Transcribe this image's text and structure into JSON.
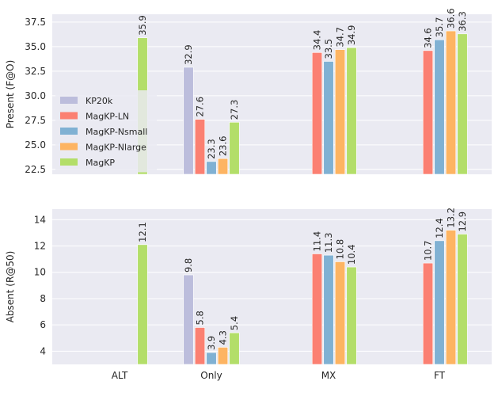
{
  "chart_data": [
    {
      "type": "bar",
      "categories": [
        "ALT",
        "Only",
        "MX",
        "FT"
      ],
      "ylabel": "Present (F@O)",
      "ylim": [
        22.0,
        38.3
      ],
      "yticks": [
        22.5,
        25.0,
        27.5,
        30.0,
        32.5,
        35.0,
        37.5
      ],
      "ytick_labels": [
        "22.5",
        "25.0",
        "27.5",
        "30.0",
        "32.5",
        "35.0",
        "37.5"
      ],
      "grid": true,
      "legend": "middle-left",
      "series": [
        {
          "name": "KP20k",
          "color": "#bcbddc",
          "values": [
            null,
            32.9,
            null,
            null
          ],
          "labels": [
            "",
            "32.9",
            "",
            ""
          ]
        },
        {
          "name": "MagKP-LN",
          "color": "#fb8072",
          "values": [
            null,
            27.6,
            34.4,
            34.6
          ],
          "labels": [
            "",
            "27.6",
            "34.4",
            "34.6"
          ]
        },
        {
          "name": "MagKP-Nsmall",
          "color": "#80b1d3",
          "values": [
            null,
            23.3,
            33.5,
            35.7
          ],
          "labels": [
            "",
            "23.3",
            "33.5",
            "35.7"
          ]
        },
        {
          "name": "MagKP-Nlarge",
          "color": "#fdb462",
          "values": [
            null,
            23.6,
            34.7,
            36.6
          ],
          "labels": [
            "",
            "23.6",
            "34.7",
            "36.6"
          ]
        },
        {
          "name": "MagKP",
          "color": "#b3de69",
          "values": [
            35.9,
            27.3,
            34.9,
            36.3
          ],
          "labels": [
            "35.9",
            "27.3",
            "34.9",
            "36.3"
          ]
        }
      ]
    },
    {
      "type": "bar",
      "categories": [
        "ALT",
        "Only",
        "MX",
        "FT"
      ],
      "xtick_labels": [
        "ALT",
        "Only",
        "MX",
        "FT"
      ],
      "ylabel": "Absent (R@50)",
      "ylim": [
        3.0,
        14.8
      ],
      "yticks": [
        4,
        6,
        8,
        10,
        12,
        14
      ],
      "ytick_labels": [
        "4",
        "6",
        "8",
        "10",
        "12",
        "14"
      ],
      "grid": true,
      "series": [
        {
          "name": "KP20k",
          "color": "#bcbddc",
          "values": [
            null,
            9.8,
            null,
            null
          ],
          "labels": [
            "",
            "9.8",
            "",
            ""
          ]
        },
        {
          "name": "MagKP-LN",
          "color": "#fb8072",
          "values": [
            null,
            5.8,
            11.4,
            10.7
          ],
          "labels": [
            "",
            "5.8",
            "11.4",
            "10.7"
          ]
        },
        {
          "name": "MagKP-Nsmall",
          "color": "#80b1d3",
          "values": [
            null,
            3.9,
            11.3,
            12.4
          ],
          "labels": [
            "",
            "3.9",
            "11.3",
            "12.4"
          ]
        },
        {
          "name": "MagKP-Nlarge",
          "color": "#fdb462",
          "values": [
            null,
            4.3,
            10.8,
            13.2
          ],
          "labels": [
            "",
            "4.3",
            "10.8",
            "13.2"
          ]
        },
        {
          "name": "MagKP",
          "color": "#b3de69",
          "values": [
            12.1,
            5.4,
            10.4,
            12.9
          ],
          "labels": [
            "12.1",
            "5.4",
            "10.4",
            "12.9"
          ]
        }
      ]
    }
  ]
}
